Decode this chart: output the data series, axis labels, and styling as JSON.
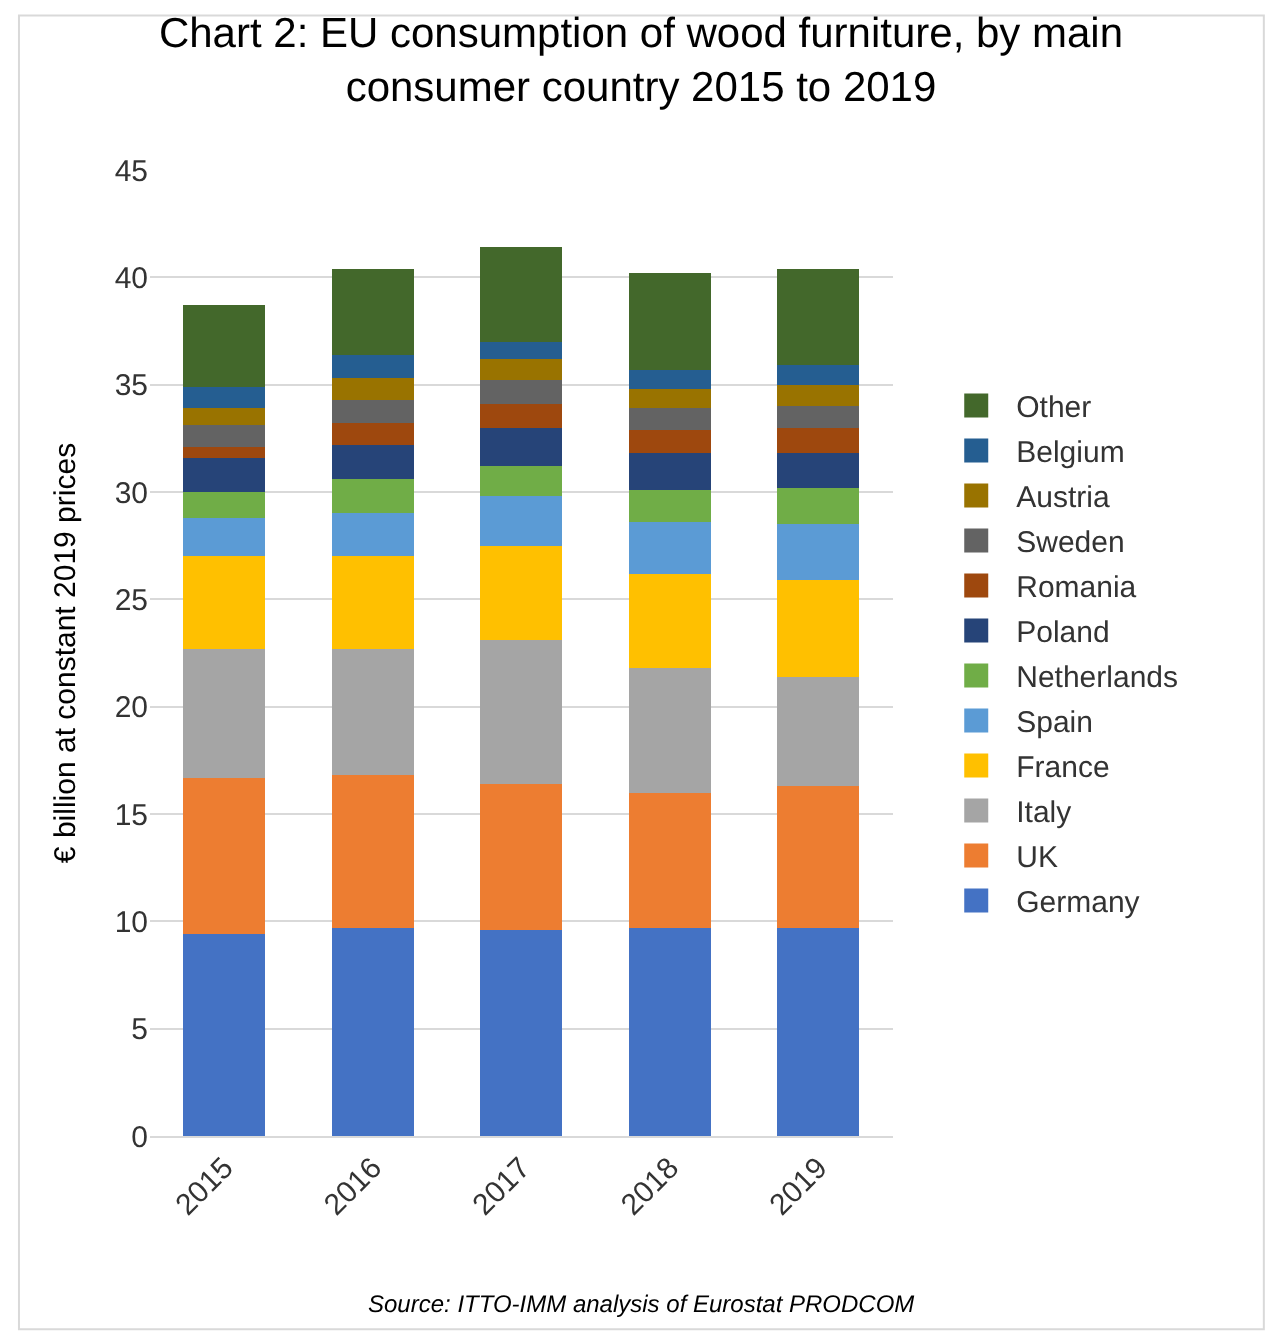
{
  "chart_data": {
    "type": "bar",
    "stacked": true,
    "title": "Chart 2: EU consumption of wood furniture, by main consumer country 2015 to 2019",
    "ylabel": "€ billion at constant 2019 prices",
    "categories": [
      "2015",
      "2016",
      "2017",
      "2018",
      "2019"
    ],
    "series": [
      {
        "name": "Germany",
        "color": "#4472c4",
        "values": [
          9.4,
          9.7,
          9.6,
          9.7,
          9.7
        ]
      },
      {
        "name": "UK",
        "color": "#ed7d31",
        "values": [
          7.3,
          7.1,
          6.8,
          6.3,
          6.6
        ]
      },
      {
        "name": "Italy",
        "color": "#a5a5a5",
        "values": [
          6.0,
          5.9,
          6.7,
          5.8,
          5.1
        ]
      },
      {
        "name": "France",
        "color": "#ffc000",
        "values": [
          4.3,
          4.3,
          4.4,
          4.4,
          4.5
        ]
      },
      {
        "name": "Spain",
        "color": "#5b9bd5",
        "values": [
          1.8,
          2.0,
          2.3,
          2.4,
          2.6
        ]
      },
      {
        "name": "Netherlands",
        "color": "#70ad47",
        "values": [
          1.2,
          1.6,
          1.4,
          1.5,
          1.7
        ]
      },
      {
        "name": "Poland",
        "color": "#264478",
        "values": [
          1.6,
          1.6,
          1.8,
          1.7,
          1.6
        ]
      },
      {
        "name": "Romania",
        "color": "#9e480e",
        "values": [
          0.5,
          1.0,
          1.1,
          1.1,
          1.2
        ]
      },
      {
        "name": "Sweden",
        "color": "#636363",
        "values": [
          1.0,
          1.1,
          1.1,
          1.0,
          1.0
        ]
      },
      {
        "name": "Austria",
        "color": "#997300",
        "values": [
          0.8,
          1.0,
          1.0,
          0.9,
          1.0
        ]
      },
      {
        "name": "Belgium",
        "color": "#255e91",
        "values": [
          1.0,
          1.1,
          0.8,
          0.9,
          0.9
        ]
      },
      {
        "name": "Other",
        "color": "#43682b",
        "values": [
          3.8,
          4.0,
          4.4,
          4.5,
          4.5
        ]
      }
    ],
    "ylim": [
      0,
      45
    ],
    "yticks": [
      0,
      5,
      10,
      15,
      20,
      25,
      30,
      35,
      40,
      45
    ],
    "grid": "y",
    "legend": "right",
    "annotations": [
      "Source: ITTO-IMM analysis of Eurostat PRODCOM"
    ]
  }
}
